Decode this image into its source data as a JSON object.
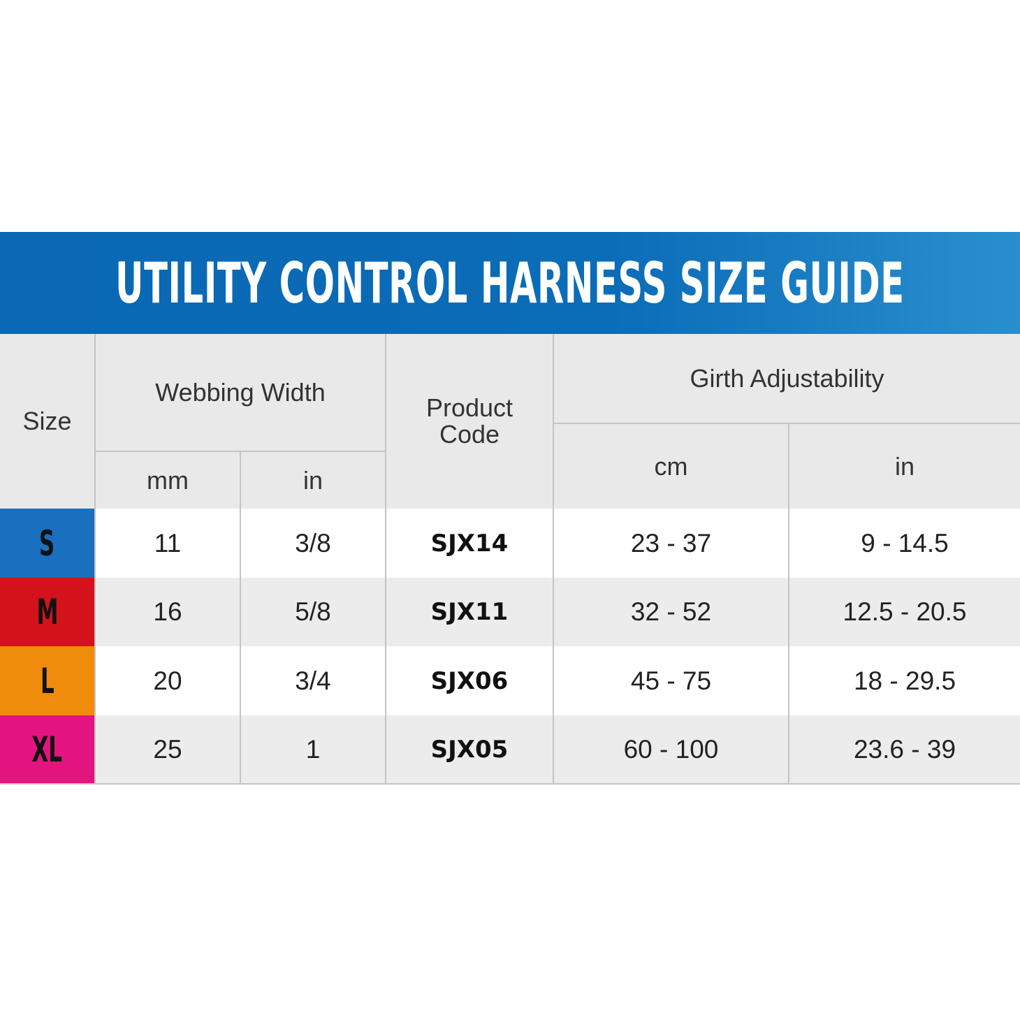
{
  "title": "UTILITY CONTROL HARNESS SIZE GUIDE",
  "headers": {
    "size": "Size",
    "webbing_width": "Webbing Width",
    "webbing_mm": "mm",
    "webbing_in": "in",
    "product_code": "Product Code",
    "girth": "Girth Adjustability",
    "girth_cm": "cm",
    "girth_in": "in"
  },
  "rows": [
    {
      "size": "S",
      "color": "#1a6fbf",
      "mm": "11",
      "in": "3/8",
      "code": "SJX14",
      "cm": "23 - 37",
      "girth_in": "9 - 14.5"
    },
    {
      "size": "M",
      "color": "#d3121b",
      "mm": "16",
      "in": "5/8",
      "code": "SJX11",
      "cm": "32 - 52",
      "girth_in": "12.5 - 20.5"
    },
    {
      "size": "L",
      "color": "#f08c0c",
      "mm": "20",
      "in": "3/4",
      "code": "SJX06",
      "cm": "45 - 75",
      "girth_in": "18 - 29.5"
    },
    {
      "size": "XL",
      "color": "#e3147f",
      "mm": "25",
      "in": "1",
      "code": "SJX05",
      "cm": "60 - 100",
      "girth_in": "23.6 - 39"
    }
  ]
}
